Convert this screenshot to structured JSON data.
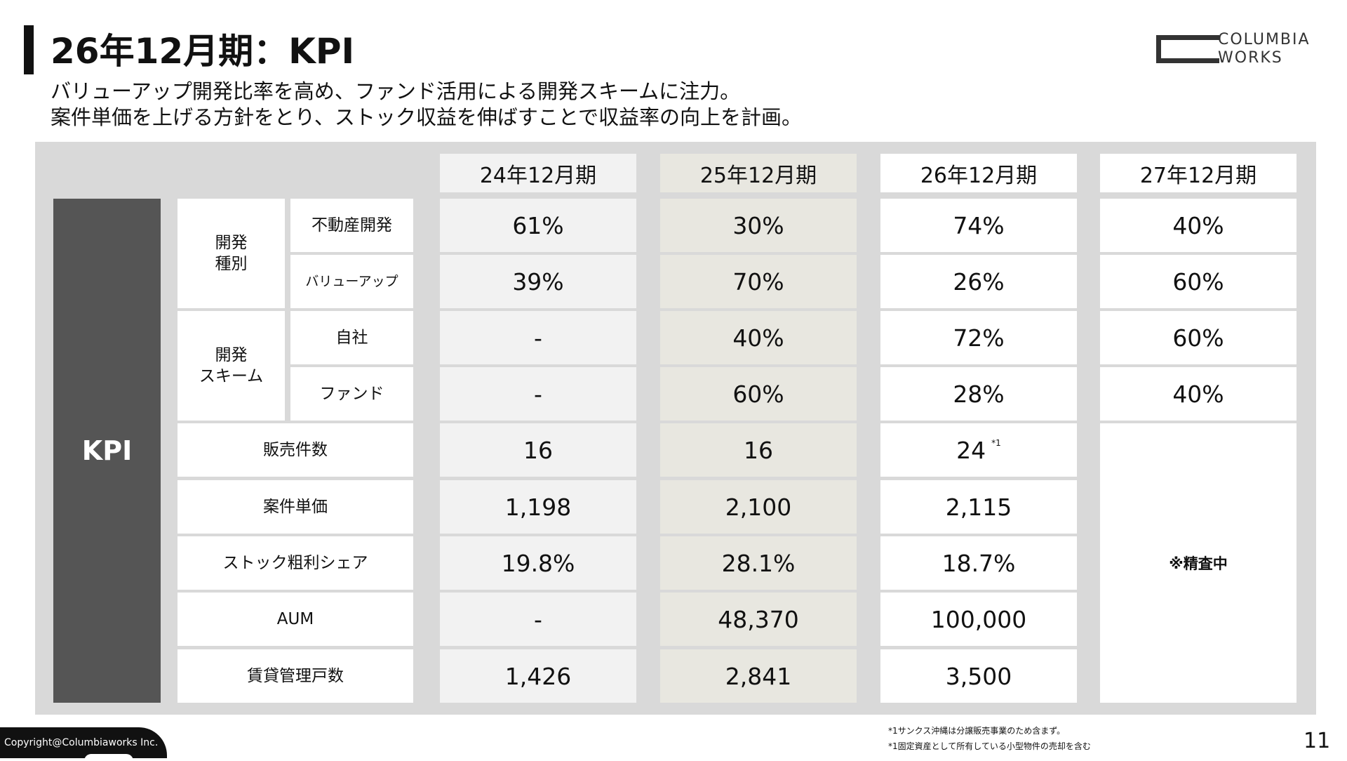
{
  "slide": {
    "title": "26年12月期：KPI",
    "subtitle_line1": "バリューアップ開発比率を高め、ファンド活用による開発スキームに注力。",
    "subtitle_line2": "案件単価を上げる方針をとり、ストック収益を伸ばすことで収益率の向上を計画。",
    "page_number": "11",
    "copyright": "Copyright@Columbiaworks Inc."
  },
  "logo": {
    "line1": "COLUMBIA",
    "line2": "WORKS"
  },
  "table": {
    "kpi_label": "KPI",
    "periods": [
      "24年12月期",
      "25年12月期",
      "26年12月期",
      "27年12月期"
    ],
    "groups": {
      "dev_type": {
        "line1": "開発",
        "line2": "種別"
      },
      "dev_scheme": {
        "line1": "開発",
        "line2": "スキーム"
      }
    },
    "rows": [
      {
        "label": "不動産開発",
        "values": [
          "61%",
          "30%",
          "74%",
          "40%"
        ]
      },
      {
        "label": "バリューアップ",
        "values": [
          "39%",
          "70%",
          "26%",
          "60%"
        ]
      },
      {
        "label": "自社",
        "values": [
          "-",
          "40%",
          "72%",
          "60%"
        ]
      },
      {
        "label": "ファンド",
        "values": [
          "-",
          "60%",
          "28%",
          "40%"
        ]
      },
      {
        "label": "販売件数",
        "values": [
          "16",
          "16",
          "24"
        ]
      },
      {
        "label": "案件単価",
        "values": [
          "1,198",
          "2,100",
          "2,115"
        ]
      },
      {
        "label": "ストック粗利シェア",
        "values": [
          "19.8%",
          "28.1%",
          "18.7%"
        ]
      },
      {
        "label": "AUM",
        "values": [
          "-",
          "48,370",
          "100,000"
        ]
      },
      {
        "label": "賃貸管理戸数",
        "values": [
          "1,426",
          "2,841",
          "3,500"
        ]
      }
    ],
    "footnote_mark": "*1",
    "pending_note": "※精査中"
  },
  "footnotes": [
    "*1サンクス沖縄は分譲販売事業のため含まず。",
    "*1固定資産として所有している小型物件の売却を含む"
  ]
}
